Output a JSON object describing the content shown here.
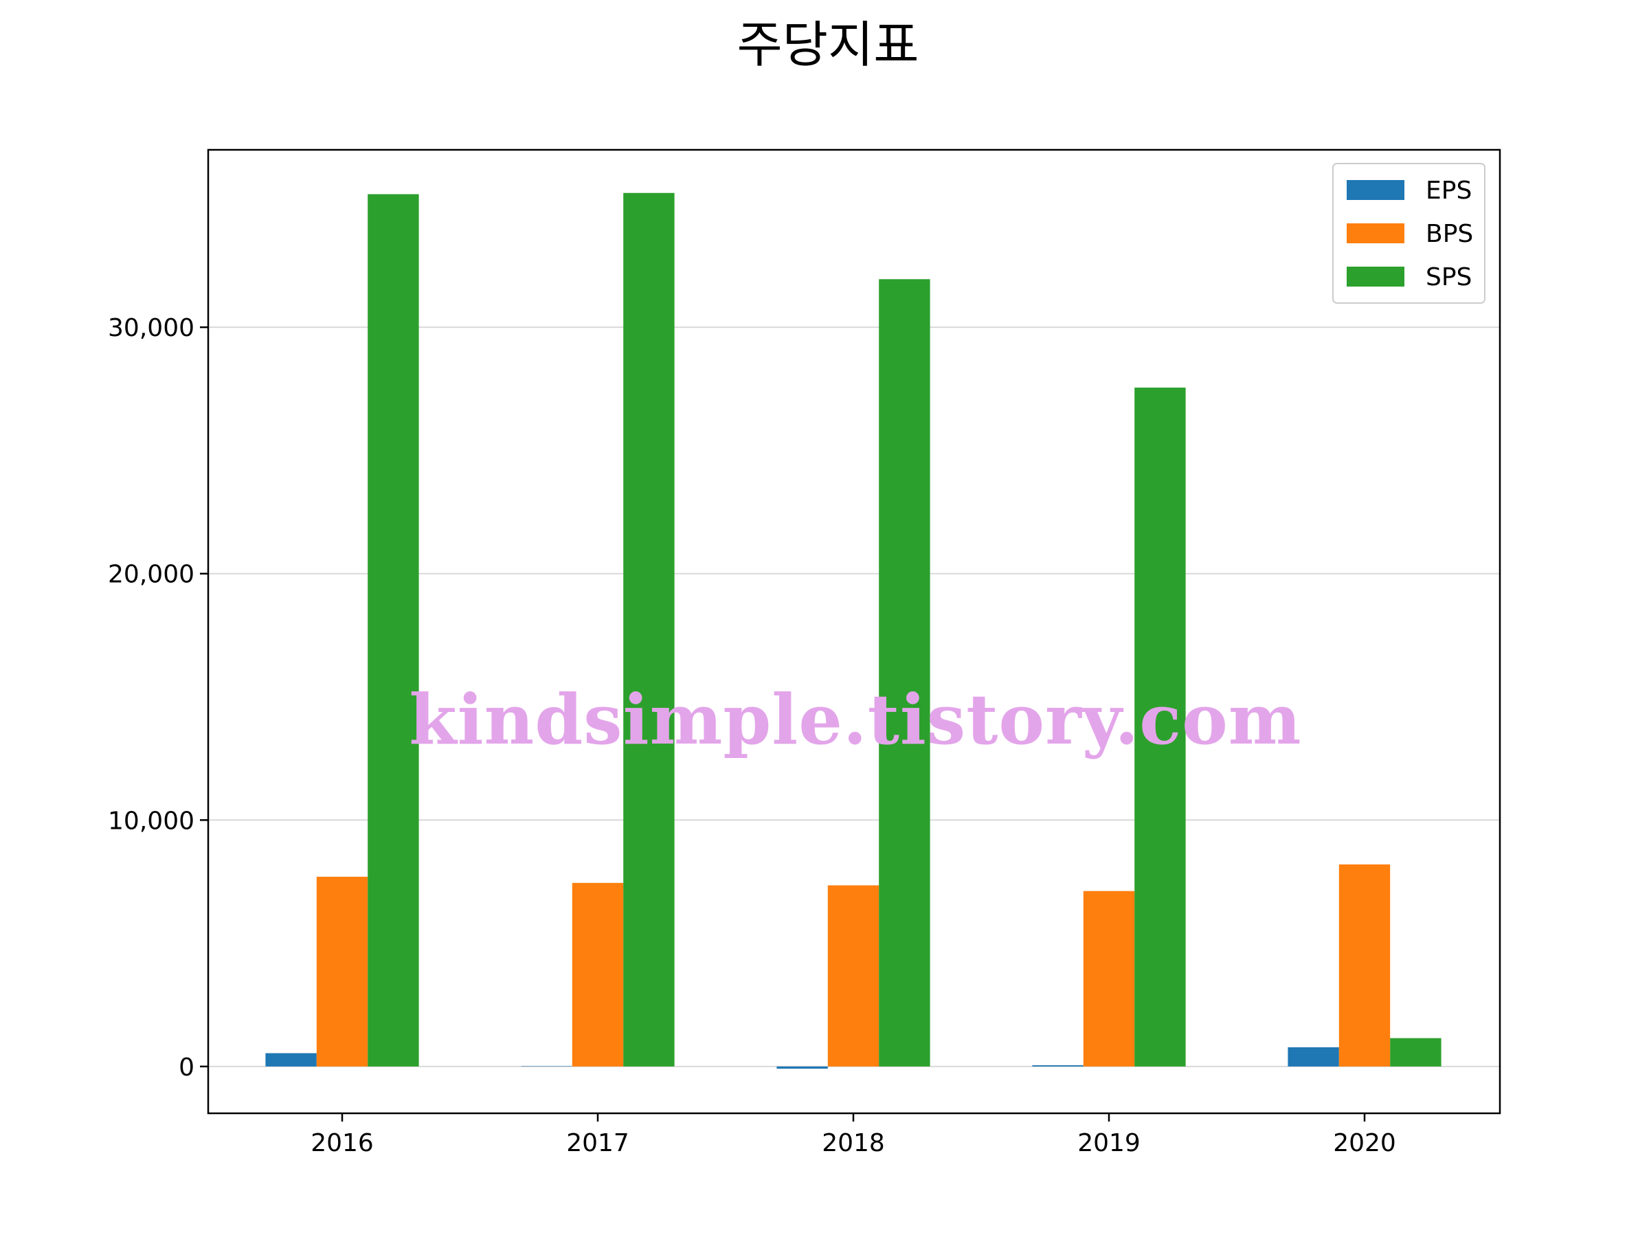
{
  "chart_data": {
    "type": "bar",
    "title": "주당지표",
    "categories": [
      "2016",
      "2017",
      "2018",
      "2019",
      "2020"
    ],
    "series": [
      {
        "name": "EPS",
        "color": "#1f77b4",
        "values": [
          540,
          10,
          -90,
          50,
          780
        ]
      },
      {
        "name": "BPS",
        "color": "#ff7f0e",
        "values": [
          7700,
          7450,
          7350,
          7120,
          8200
        ]
      },
      {
        "name": "SPS",
        "color": "#2ca02c",
        "values": [
          35400,
          35450,
          31950,
          27550,
          1150
        ]
      }
    ],
    "yticks": [
      0,
      10000,
      20000,
      30000
    ],
    "ytick_labels": [
      "0",
      "10,000",
      "20,000",
      "30,000"
    ],
    "ylim": [
      -1900,
      37200
    ],
    "xlabel": "",
    "ylabel": "",
    "grid": "y",
    "legend": "top-right"
  },
  "watermark": "kindsimple.tistory.com",
  "colors": {
    "grid": "#d9d9d9",
    "axis": "#000000",
    "watermark": "#e3a5ea"
  }
}
